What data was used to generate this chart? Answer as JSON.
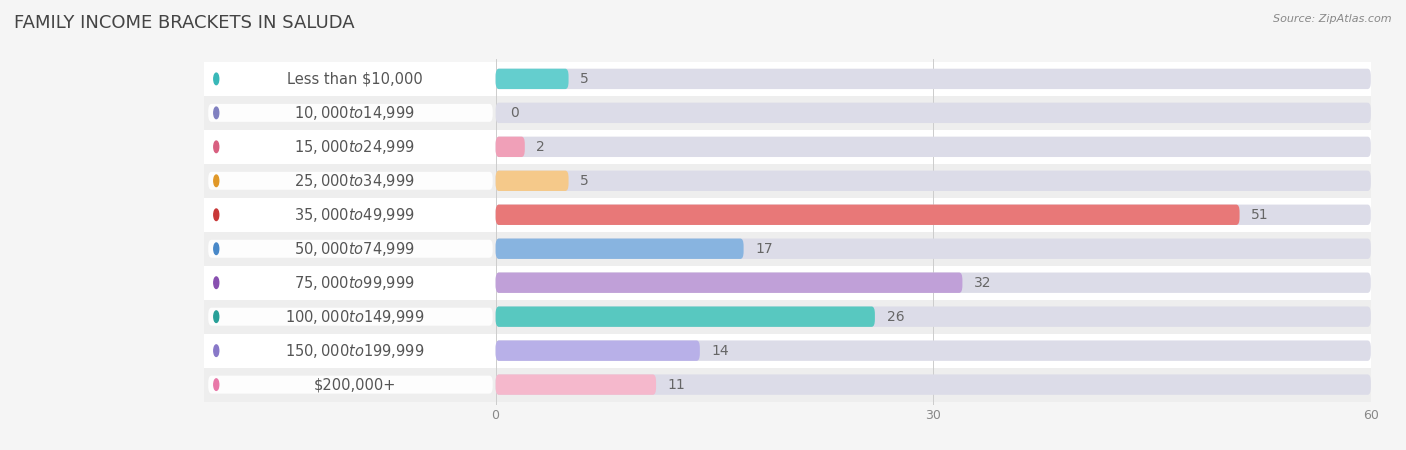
{
  "title": "Family Income Brackets in Saluda",
  "source": "Source: ZipAtlas.com",
  "categories": [
    "Less than $10,000",
    "$10,000 to $14,999",
    "$15,000 to $24,999",
    "$25,000 to $34,999",
    "$35,000 to $49,999",
    "$50,000 to $74,999",
    "$75,000 to $99,999",
    "$100,000 to $149,999",
    "$150,000 to $199,999",
    "$200,000+"
  ],
  "values": [
    5,
    0,
    2,
    5,
    51,
    17,
    32,
    26,
    14,
    11
  ],
  "bar_colors": [
    "#64cece",
    "#a8a8dc",
    "#f0a0b8",
    "#f5c98a",
    "#e87878",
    "#88b4e0",
    "#c0a0d8",
    "#58c8c0",
    "#b8b0e8",
    "#f5b8cc"
  ],
  "dot_colors": [
    "#38b8b8",
    "#8080c0",
    "#d86080",
    "#e09828",
    "#c83838",
    "#4888c8",
    "#8850b0",
    "#28a098",
    "#8878c8",
    "#e878a8"
  ],
  "row_colors": [
    "#ffffff",
    "#eeeeee"
  ],
  "bar_bg_color": "#dcdce8",
  "label_bg_color": "#f0f0f4",
  "xlim_max": 60,
  "xticks": [
    0,
    30,
    60
  ],
  "title_fontsize": 13,
  "label_fontsize": 10.5,
  "value_fontsize": 10,
  "source_fontsize": 8,
  "bar_height": 0.6
}
